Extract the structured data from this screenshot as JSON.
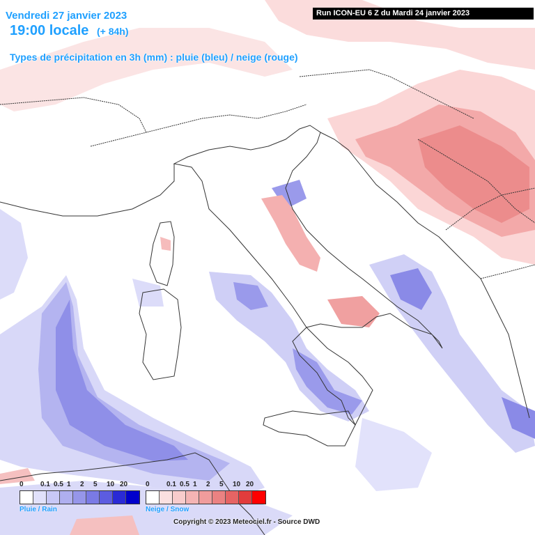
{
  "header": {
    "date": "Vendredi 27 janvier 2023",
    "time": "19:00 locale",
    "lead": "(+ 84h)",
    "type": "Types de précipitation en 3h (mm) : pluie (bleu) / neige (rouge)",
    "run": "Run ICON-EU 6 Z du Mardi 24 janvier 2023"
  },
  "legend_rain": {
    "caption": "Pluie / Rain",
    "ticks": [
      "0",
      "0.1",
      "0.5",
      "1",
      "2",
      "5",
      "10",
      "20"
    ],
    "colors": [
      "#ffffff",
      "#e1e1fb",
      "#c8c8f6",
      "#afafef",
      "#9696ea",
      "#7a7ae5",
      "#5c5ce0",
      "#2a2ad6",
      "#0000cc"
    ]
  },
  "legend_snow": {
    "caption": "Neige / Snow",
    "ticks": [
      "0",
      "0.1",
      "0.5",
      "1",
      "2",
      "5",
      "10",
      "20"
    ],
    "colors": [
      "#ffffff",
      "#fbe0e0",
      "#f8cccc",
      "#f4b4b4",
      "#f09c9c",
      "#eb8282",
      "#e66464",
      "#e23c3c",
      "#ff0000"
    ]
  },
  "colors": {
    "sea": "#ffffff",
    "border": "#333333",
    "title": "#1fa0ff"
  },
  "footer": {
    "copyright": "Copyright © 2023 Meteociel.fr - Source DWD"
  }
}
